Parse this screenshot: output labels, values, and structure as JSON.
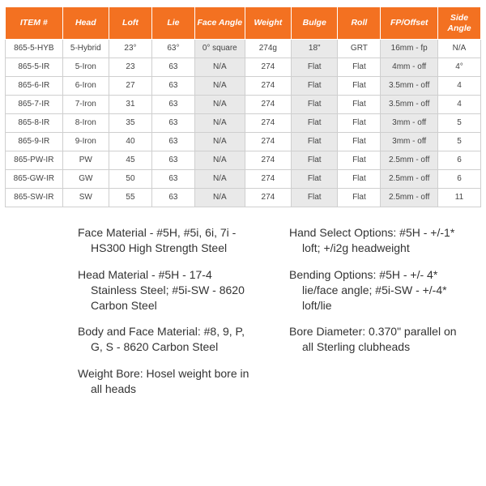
{
  "table": {
    "header_bg": "#f37121",
    "columns": [
      "ITEM #",
      "Head",
      "Loft",
      "Lie",
      "Face Angle",
      "Weight",
      "Bulge",
      "Roll",
      "FP/Offset",
      "Side Angle"
    ],
    "shaded_col_indices": [
      4,
      6,
      8
    ],
    "rows": [
      [
        "865-5-HYB",
        "5-Hybrid",
        "23°",
        "63°",
        "0° square",
        "274g",
        "18\"",
        "GRT",
        "16mm - fp",
        "N/A"
      ],
      [
        "865-5-IR",
        "5-Iron",
        "23",
        "63",
        "N/A",
        "274",
        "Flat",
        "Flat",
        "4mm - off",
        "4°"
      ],
      [
        "865-6-IR",
        "6-Iron",
        "27",
        "63",
        "N/A",
        "274",
        "Flat",
        "Flat",
        "3.5mm - off",
        "4"
      ],
      [
        "865-7-IR",
        "7-Iron",
        "31",
        "63",
        "N/A",
        "274",
        "Flat",
        "Flat",
        "3.5mm - off",
        "4"
      ],
      [
        "865-8-IR",
        "8-Iron",
        "35",
        "63",
        "N/A",
        "274",
        "Flat",
        "Flat",
        "3mm - off",
        "5"
      ],
      [
        "865-9-IR",
        "9-Iron",
        "40",
        "63",
        "N/A",
        "274",
        "Flat",
        "Flat",
        "3mm - off",
        "5"
      ],
      [
        "865-PW-IR",
        "PW",
        "45",
        "63",
        "N/A",
        "274",
        "Flat",
        "Flat",
        "2.5mm - off",
        "6"
      ],
      [
        "865-GW-IR",
        "GW",
        "50",
        "63",
        "N/A",
        "274",
        "Flat",
        "Flat",
        "2.5mm - off",
        "6"
      ],
      [
        "865-SW-IR",
        "SW",
        "55",
        "63",
        "N/A",
        "274",
        "Flat",
        "Flat",
        "2.5mm - off",
        "11"
      ]
    ]
  },
  "notes": {
    "left": [
      "Face Material - #5H, #5i, 6i, 7i - HS300 High Strength Steel",
      "Head Material - #5H - 17-4 Stainless Steel; #5i-SW - 8620 Carbon Steel",
      "Body and Face Material: #8, 9, P, G, S - 8620 Carbon Steel",
      "Weight Bore: Hosel weight bore in all heads"
    ],
    "right": [
      "Hand Select Options: #5H - +/-1* loft; +/i2g headweight",
      "Bending Options: #5H - +/- 4* lie/face angle; #5i-SW - +/-4* loft/lie",
      "Bore Diameter: 0.370\" parallel on all Sterling clubheads"
    ]
  }
}
